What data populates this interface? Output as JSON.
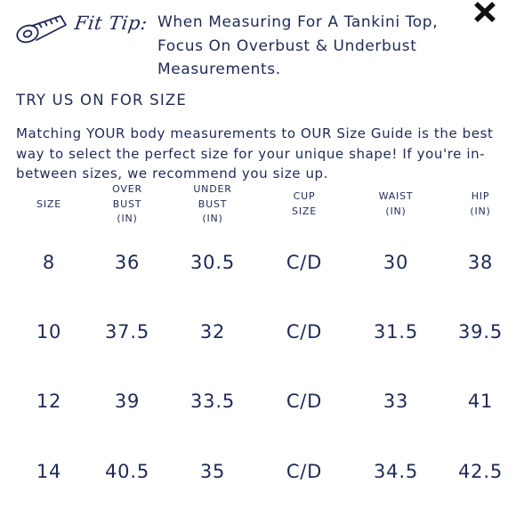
{
  "fit_tip": {
    "label": "Fit Tip:",
    "text": "When Measuring For A Tankini Top, Focus On Overbust & Underbust Measurements."
  },
  "section_heading": "TRY US ON FOR SIZE",
  "intro": "Matching YOUR body measurements to OUR Size Guide is the best way to select the perfect size for your unique shape! If you're in-between sizes, we recommend you size up.",
  "table": {
    "headers": [
      "SIZE",
      "OVER\nBUST\n(IN)",
      "UNDER\nBUST\n(IN)",
      "CUP\nSIZE",
      "WAIST\n(IN)",
      "HIP\n(IN)"
    ],
    "rows": [
      [
        "8",
        "36",
        "30.5",
        "C/D",
        "30",
        "38"
      ],
      [
        "10",
        "37.5",
        "32",
        "C/D",
        "31.5",
        "39.5"
      ],
      [
        "12",
        "39",
        "33.5",
        "C/D",
        "33",
        "41"
      ],
      [
        "14",
        "40.5",
        "35",
        "C/D",
        "34.5",
        "42.5"
      ]
    ]
  },
  "icons": {
    "tape": "measuring-tape-icon",
    "close": "close-icon"
  },
  "colors": {
    "text": "#1f2a55",
    "close": "#111111",
    "background": "#ffffff"
  }
}
